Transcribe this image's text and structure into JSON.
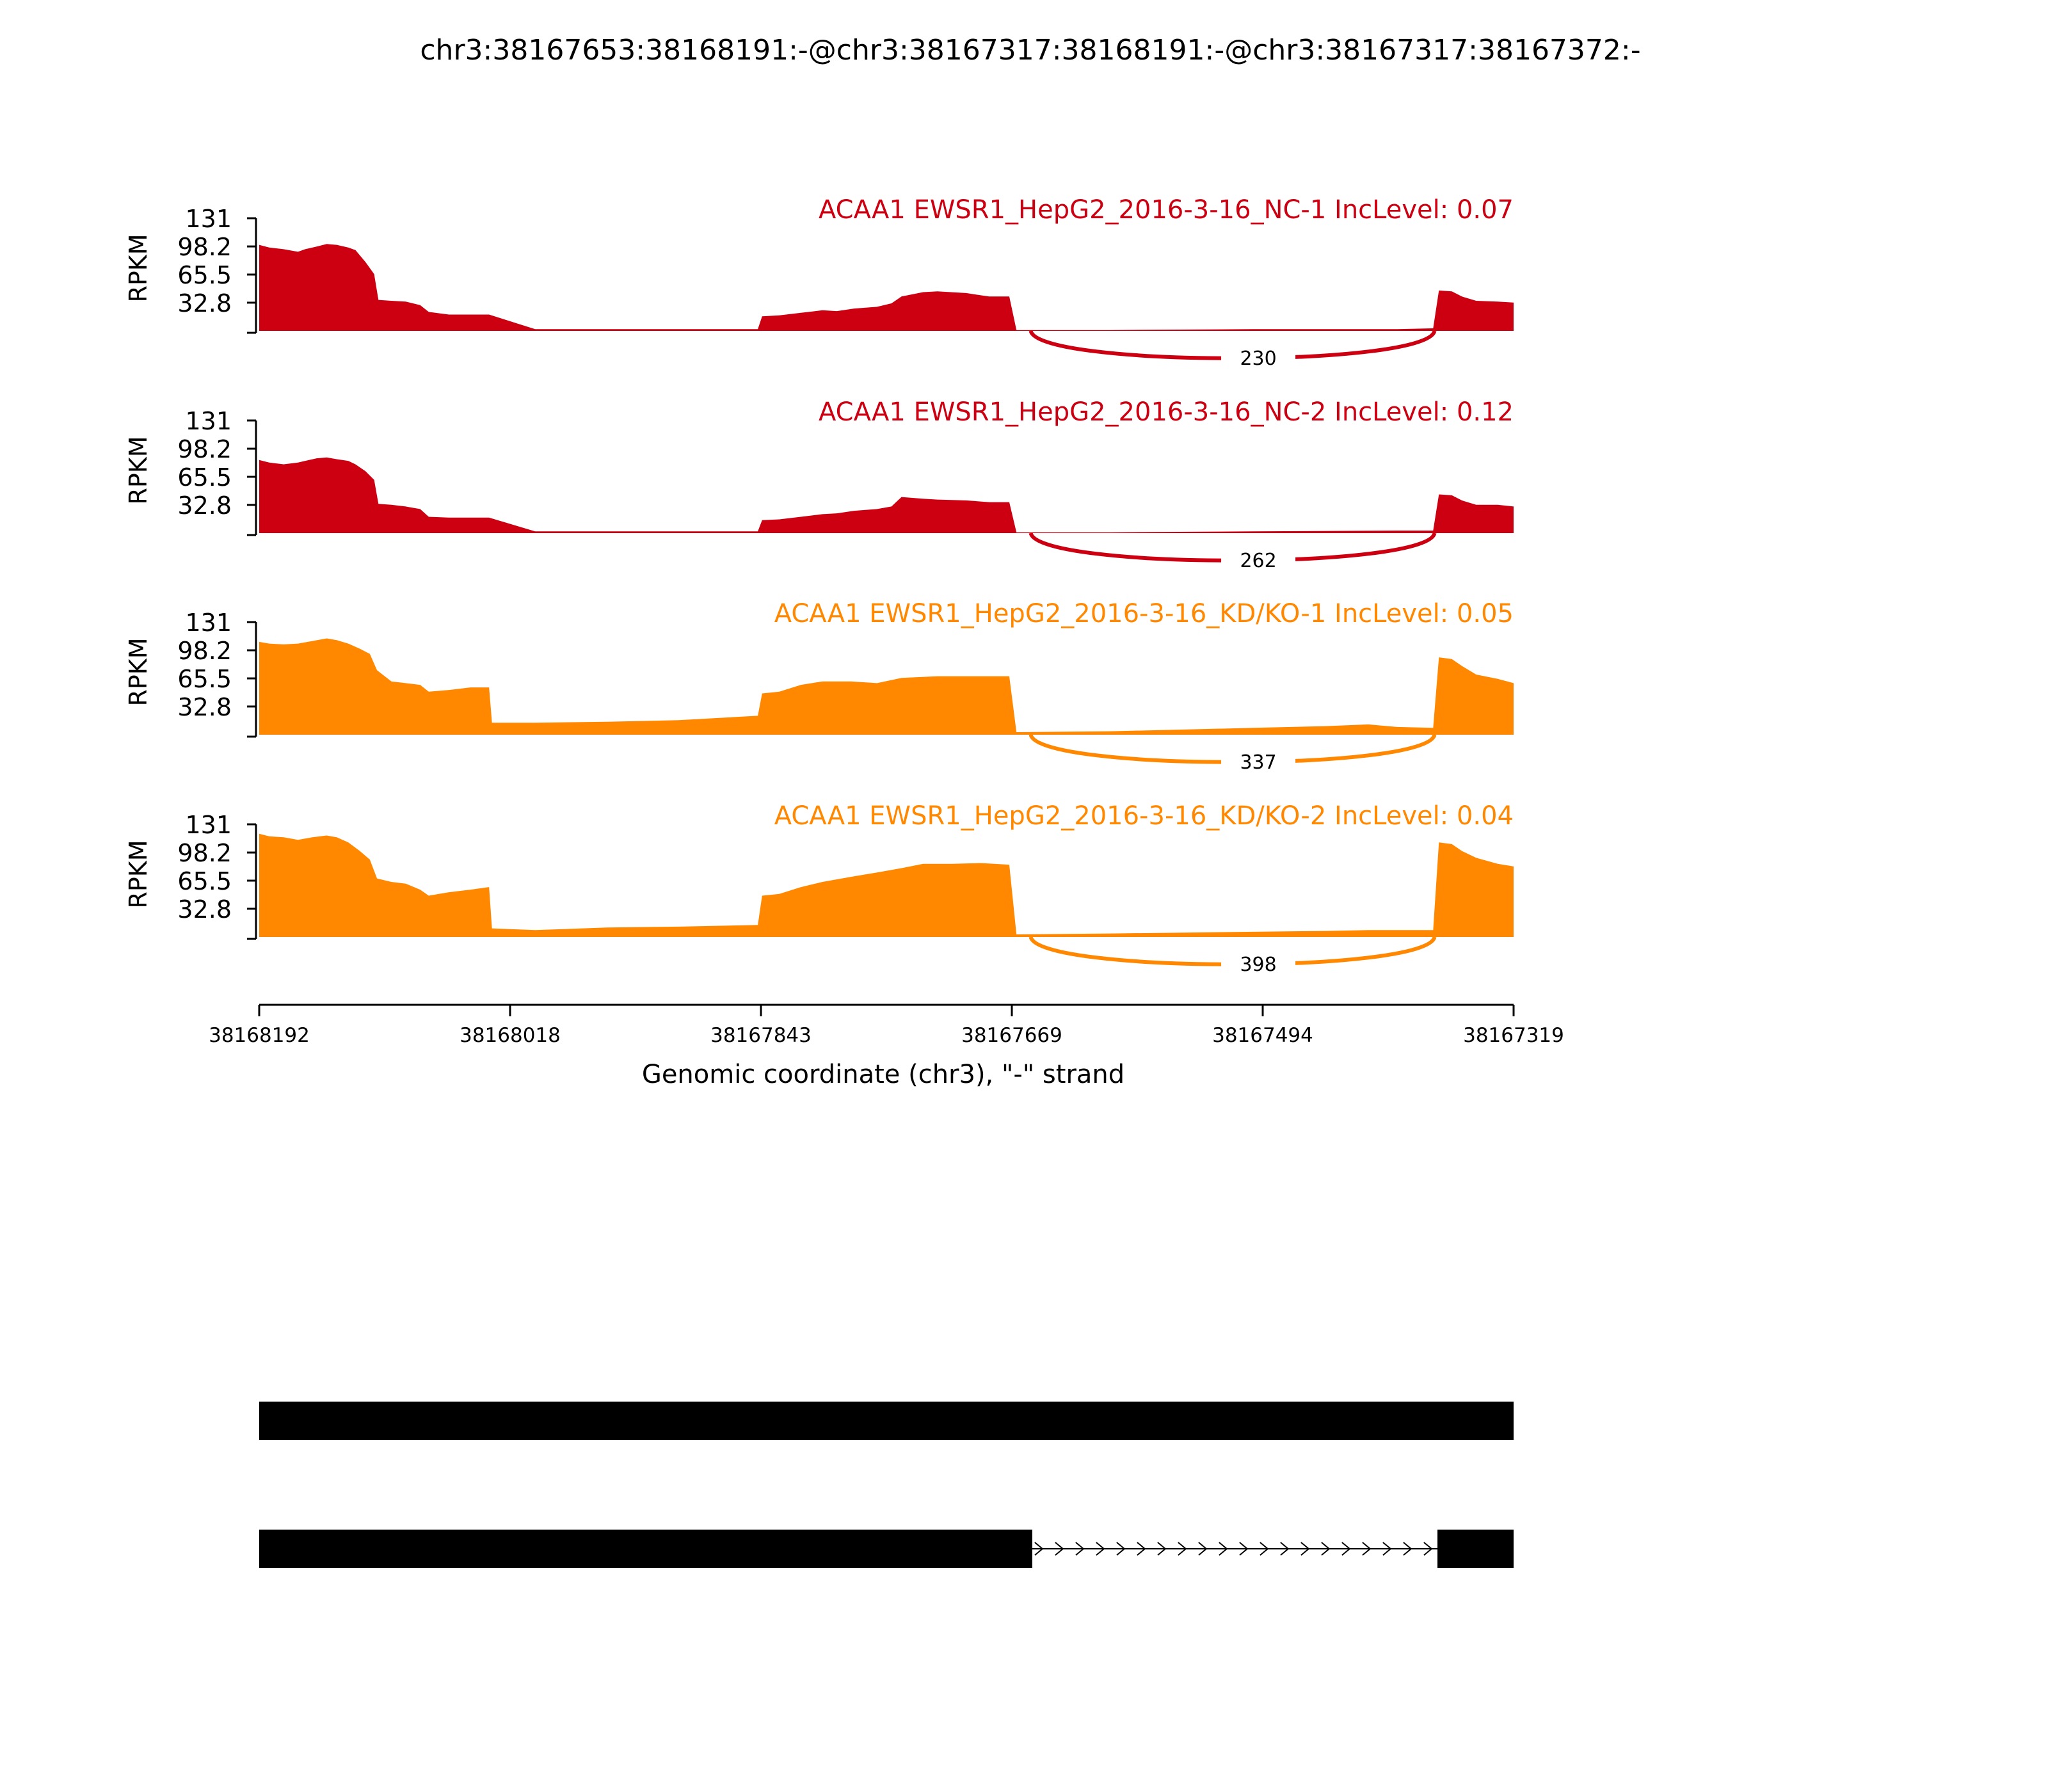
{
  "chart_data": {
    "type": "area",
    "title": "chr3:38167653:38168191:-@chr3:38167317:38168191:-@chr3:38167317:38167372:-",
    "ylabel": "RPKM",
    "xlabel": "Genomic coordinate (chr3), \"-\" strand",
    "ylim": [
      0,
      131
    ],
    "yticks": [
      "131",
      "98.2",
      "65.5",
      "32.8"
    ],
    "xlim": [
      38168192,
      38167319
    ],
    "xticks": [
      "38168192",
      "38168018",
      "38167843",
      "38167669",
      "38167494",
      "38167319"
    ],
    "tracks": [
      {
        "label": "ACAA1 EWSR1_HepG2_2016-3-16_NC-1 IncLevel: 0.07",
        "color": "#cc0011",
        "junction": {
          "count": "230",
          "from": 38167655,
          "to": 38167374
        },
        "coverage": [
          [
            38168192,
            100
          ],
          [
            38168185,
            97
          ],
          [
            38168175,
            95
          ],
          [
            38168165,
            92
          ],
          [
            38168160,
            95
          ],
          [
            38168152,
            98
          ],
          [
            38168145,
            101
          ],
          [
            38168138,
            100
          ],
          [
            38168130,
            97
          ],
          [
            38168125,
            94
          ],
          [
            38168118,
            80
          ],
          [
            38168112,
            66
          ],
          [
            38168109,
            36
          ],
          [
            38168100,
            35
          ],
          [
            38168090,
            34
          ],
          [
            38168080,
            30
          ],
          [
            38168074,
            22
          ],
          [
            38168060,
            19
          ],
          [
            38168045,
            19
          ],
          [
            38168032,
            19
          ],
          [
            38168000,
            2
          ],
          [
            38167900,
            2
          ],
          [
            38167845,
            2
          ],
          [
            38167842,
            17
          ],
          [
            38167830,
            18
          ],
          [
            38167815,
            21
          ],
          [
            38167800,
            24
          ],
          [
            38167790,
            23
          ],
          [
            38167778,
            26
          ],
          [
            38167762,
            28
          ],
          [
            38167752,
            32
          ],
          [
            38167745,
            40
          ],
          [
            38167730,
            45
          ],
          [
            38167720,
            46
          ],
          [
            38167700,
            44
          ],
          [
            38167684,
            40
          ],
          [
            38167670,
            40
          ],
          [
            38167665,
            1
          ],
          [
            38167600,
            1
          ],
          [
            38167500,
            2
          ],
          [
            38167400,
            2
          ],
          [
            38167375,
            3
          ],
          [
            38167371,
            47
          ],
          [
            38167362,
            46
          ],
          [
            38167355,
            40
          ],
          [
            38167345,
            35
          ],
          [
            38167330,
            34
          ],
          [
            38167319,
            33
          ]
        ]
      },
      {
        "label": "ACAA1 EWSR1_HepG2_2016-3-16_NC-2 IncLevel: 0.12",
        "color": "#cc0011",
        "junction": {
          "count": "262",
          "from": 38167655,
          "to": 38167374
        },
        "coverage": [
          [
            38168192,
            85
          ],
          [
            38168185,
            82
          ],
          [
            38168175,
            80
          ],
          [
            38168165,
            82
          ],
          [
            38168160,
            84
          ],
          [
            38168152,
            87
          ],
          [
            38168145,
            88
          ],
          [
            38168138,
            86
          ],
          [
            38168130,
            84
          ],
          [
            38168125,
            80
          ],
          [
            38168118,
            72
          ],
          [
            38168112,
            62
          ],
          [
            38168109,
            34
          ],
          [
            38168100,
            33
          ],
          [
            38168090,
            31
          ],
          [
            38168080,
            28
          ],
          [
            38168074,
            19
          ],
          [
            38168060,
            18
          ],
          [
            38168045,
            18
          ],
          [
            38168032,
            18
          ],
          [
            38168000,
            2
          ],
          [
            38167900,
            2
          ],
          [
            38167845,
            2
          ],
          [
            38167842,
            15
          ],
          [
            38167830,
            16
          ],
          [
            38167815,
            19
          ],
          [
            38167800,
            22
          ],
          [
            38167790,
            23
          ],
          [
            38167778,
            26
          ],
          [
            38167762,
            28
          ],
          [
            38167752,
            31
          ],
          [
            38167745,
            42
          ],
          [
            38167730,
            40
          ],
          [
            38167720,
            39
          ],
          [
            38167700,
            38
          ],
          [
            38167684,
            36
          ],
          [
            38167670,
            36
          ],
          [
            38167665,
            1
          ],
          [
            38167600,
            1
          ],
          [
            38167500,
            2
          ],
          [
            38167400,
            3
          ],
          [
            38167375,
            3
          ],
          [
            38167371,
            45
          ],
          [
            38167362,
            44
          ],
          [
            38167355,
            38
          ],
          [
            38167345,
            33
          ],
          [
            38167330,
            33
          ],
          [
            38167319,
            31
          ]
        ]
      },
      {
        "label": "ACAA1 EWSR1_HepG2_2016-3-16_KD/KO-1 IncLevel: 0.05",
        "color": "#ff8800",
        "junction": {
          "count": "337",
          "from": 38167655,
          "to": 38167374
        },
        "coverage": [
          [
            38168192,
            108
          ],
          [
            38168185,
            106
          ],
          [
            38168175,
            105
          ],
          [
            38168165,
            106
          ],
          [
            38168155,
            109
          ],
          [
            38168145,
            112
          ],
          [
            38168138,
            110
          ],
          [
            38168130,
            106
          ],
          [
            38168122,
            100
          ],
          [
            38168115,
            94
          ],
          [
            38168110,
            75
          ],
          [
            38168100,
            62
          ],
          [
            38168090,
            60
          ],
          [
            38168080,
            58
          ],
          [
            38168074,
            50
          ],
          [
            38168060,
            52
          ],
          [
            38168045,
            55
          ],
          [
            38168032,
            55
          ],
          [
            38168030,
            14
          ],
          [
            38168000,
            14
          ],
          [
            38167950,
            15
          ],
          [
            38167900,
            17
          ],
          [
            38167845,
            22
          ],
          [
            38167842,
            48
          ],
          [
            38167830,
            50
          ],
          [
            38167815,
            58
          ],
          [
            38167800,
            62
          ],
          [
            38167780,
            62
          ],
          [
            38167762,
            60
          ],
          [
            38167745,
            66
          ],
          [
            38167720,
            68
          ],
          [
            38167700,
            68
          ],
          [
            38167670,
            68
          ],
          [
            38167665,
            3
          ],
          [
            38167600,
            4
          ],
          [
            38167500,
            8
          ],
          [
            38167450,
            10
          ],
          [
            38167420,
            12
          ],
          [
            38167400,
            9
          ],
          [
            38167375,
            8
          ],
          [
            38167371,
            90
          ],
          [
            38167362,
            88
          ],
          [
            38167355,
            80
          ],
          [
            38167345,
            70
          ],
          [
            38167330,
            65
          ],
          [
            38167319,
            60
          ]
        ]
      },
      {
        "label": "ACAA1 EWSR1_HepG2_2016-3-16_KD/KO-2 IncLevel: 0.04",
        "color": "#ff8800",
        "junction": {
          "count": "398",
          "from": 38167655,
          "to": 38167374
        },
        "coverage": [
          [
            38168192,
            120
          ],
          [
            38168185,
            117
          ],
          [
            38168175,
            116
          ],
          [
            38168165,
            113
          ],
          [
            38168155,
            116
          ],
          [
            38168145,
            118
          ],
          [
            38168138,
            116
          ],
          [
            38168130,
            110
          ],
          [
            38168122,
            100
          ],
          [
            38168115,
            90
          ],
          [
            38168110,
            68
          ],
          [
            38168100,
            64
          ],
          [
            38168090,
            62
          ],
          [
            38168080,
            55
          ],
          [
            38168074,
            48
          ],
          [
            38168060,
            52
          ],
          [
            38168045,
            55
          ],
          [
            38168032,
            58
          ],
          [
            38168030,
            10
          ],
          [
            38168000,
            8
          ],
          [
            38167950,
            11
          ],
          [
            38167900,
            12
          ],
          [
            38167845,
            14
          ],
          [
            38167842,
            48
          ],
          [
            38167830,
            50
          ],
          [
            38167815,
            58
          ],
          [
            38167800,
            64
          ],
          [
            38167780,
            70
          ],
          [
            38167762,
            75
          ],
          [
            38167745,
            80
          ],
          [
            38167730,
            85
          ],
          [
            38167710,
            85
          ],
          [
            38167690,
            86
          ],
          [
            38167670,
            84
          ],
          [
            38167665,
            3
          ],
          [
            38167600,
            4
          ],
          [
            38167500,
            6
          ],
          [
            38167450,
            7
          ],
          [
            38167420,
            8
          ],
          [
            38167400,
            8
          ],
          [
            38167375,
            8
          ],
          [
            38167371,
            110
          ],
          [
            38167362,
            108
          ],
          [
            38167355,
            100
          ],
          [
            38167345,
            92
          ],
          [
            38167330,
            85
          ],
          [
            38167319,
            82
          ]
        ]
      }
    ],
    "isoforms": [
      {
        "exons": [
          [
            38168192,
            38167319
          ]
        ],
        "introns": []
      },
      {
        "exons": [
          [
            38168192,
            38167654
          ],
          [
            38167372,
            38167319
          ]
        ],
        "introns": [
          [
            38167654,
            38167372
          ]
        ]
      }
    ]
  }
}
